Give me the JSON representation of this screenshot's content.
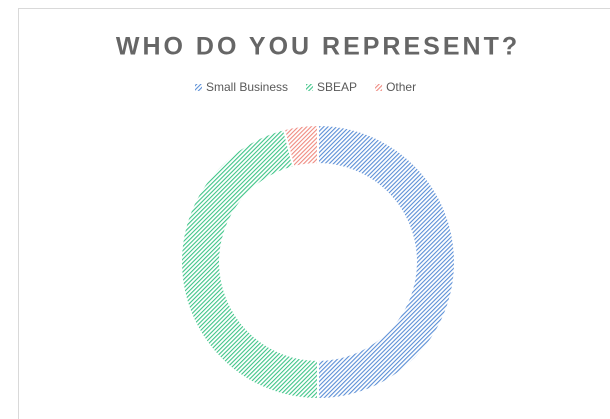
{
  "chart_data": {
    "type": "donut",
    "title": "WHO DO YOU REPRESENT?",
    "categories": [
      "Small Business",
      "SBEAP",
      "Other"
    ],
    "values": [
      50,
      46,
      4
    ],
    "colors": [
      "#5a8ed6",
      "#3dc487",
      "#ef8a80"
    ],
    "legend": "top"
  }
}
